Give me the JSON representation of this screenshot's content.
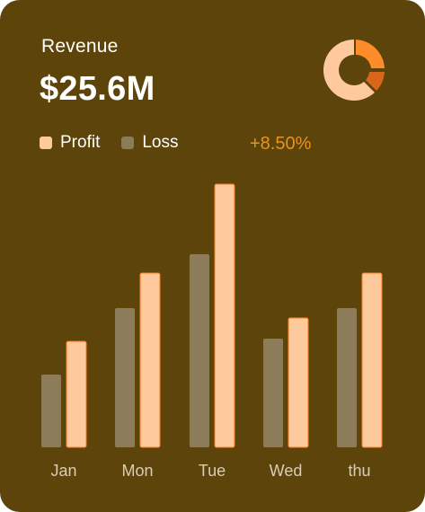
{
  "card": {
    "title": "Revenue",
    "amount": "$25.6M",
    "change": "+8.50%"
  },
  "legend": {
    "profit_label": "Profit",
    "loss_label": "Loss"
  },
  "colors": {
    "background": "#5c440b",
    "profit": "#ffc99e",
    "profit_border": "#ff7a1a",
    "loss": "#8c7c5a",
    "change": "#e8941f",
    "pie_light": "#ffc99e",
    "pie_dark": "#ff8c2a",
    "pie_darker": "#d9661a"
  },
  "pie_icon": "donut-chart-icon",
  "chart_data": {
    "type": "bar",
    "categories": [
      "Jan",
      "Mon",
      "Tue",
      "Wed",
      "thu"
    ],
    "series": [
      {
        "name": "Loss",
        "values": [
          81,
          155,
          215,
          121,
          155
        ]
      },
      {
        "name": "Profit",
        "values": [
          118,
          194,
          293,
          144,
          194
        ]
      }
    ],
    "ylim": [
      0,
      300
    ],
    "grid": false,
    "legend": "top-left"
  }
}
